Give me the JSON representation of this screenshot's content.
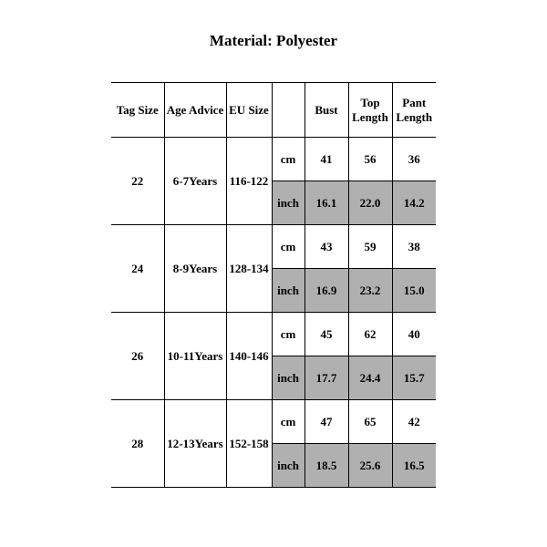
{
  "title": "Material: Polyester",
  "headers": {
    "tag": "Tag Size",
    "age": "Age Advice",
    "eu": "EU Size",
    "blank": "",
    "bust": "Bust",
    "top": "Top Length",
    "pant": "Pant Length"
  },
  "units": {
    "cm": "cm",
    "inch": "inch"
  },
  "rows": [
    {
      "tag": "22",
      "age": "6-7Years",
      "eu": "116-122",
      "cm": {
        "bust": "41",
        "top": "56",
        "pant": "36"
      },
      "inch": {
        "bust": "16.1",
        "top": "22.0",
        "pant": "14.2"
      }
    },
    {
      "tag": "24",
      "age": "8-9Years",
      "eu": "128-134",
      "cm": {
        "bust": "43",
        "top": "59",
        "pant": "38"
      },
      "inch": {
        "bust": "16.9",
        "top": "23.2",
        "pant": "15.0"
      }
    },
    {
      "tag": "26",
      "age": "10-11Years",
      "eu": "140-146",
      "cm": {
        "bust": "45",
        "top": "62",
        "pant": "40"
      },
      "inch": {
        "bust": "17.7",
        "top": "24.4",
        "pant": "15.7"
      }
    },
    {
      "tag": "28",
      "age": "12-13Years",
      "eu": "152-158",
      "cm": {
        "bust": "47",
        "top": "65",
        "pant": "42"
      },
      "inch": {
        "bust": "18.5",
        "top": "25.6",
        "pant": "16.5"
      }
    }
  ],
  "style": {
    "background": "#ffffff",
    "border_color": "#000000",
    "shade_color": "#b0b0b0",
    "font_family": "Times New Roman",
    "title_fontsize": 17,
    "cell_fontsize": 13
  }
}
